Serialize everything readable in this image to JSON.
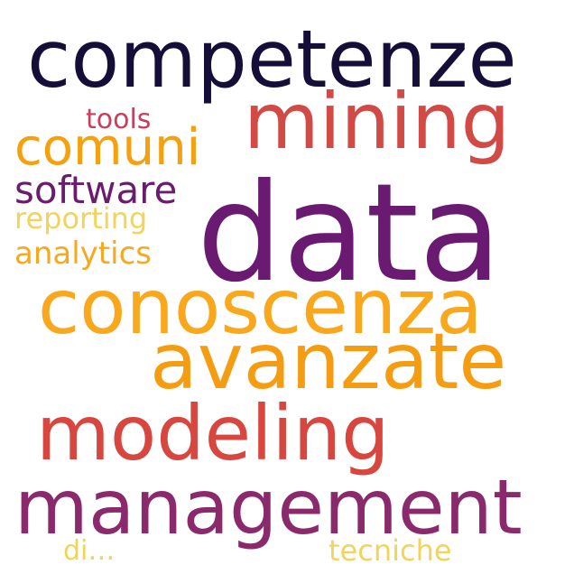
{
  "words": [
    {
      "id": "competenze",
      "text": "competenze",
      "color": "#150e38"
    },
    {
      "id": "mining",
      "text": "mining",
      "color": "#d14a45"
    },
    {
      "id": "comuni",
      "text": "comuni",
      "color": "#f5a00e"
    },
    {
      "id": "tools",
      "text": "tools",
      "color": "#c93e5a"
    },
    {
      "id": "software",
      "text": "software",
      "color": "#6a1d6c"
    },
    {
      "id": "reporting",
      "text": "reporting",
      "color": "#f2d45a"
    },
    {
      "id": "analytics",
      "text": "analytics",
      "color": "#f7a81f"
    },
    {
      "id": "data",
      "text": "data",
      "color": "#6a1a70"
    },
    {
      "id": "conoscenza",
      "text": "conoscenza",
      "color": "#f9a71c"
    },
    {
      "id": "avanzate",
      "text": "avanzate",
      "color": "#f59d12"
    },
    {
      "id": "modeling",
      "text": "modeling",
      "color": "#d8473f"
    },
    {
      "id": "management",
      "text": "management",
      "color": "#8a2a6c"
    },
    {
      "id": "di",
      "text": "di…",
      "color": "#f1d456"
    },
    {
      "id": "tecniche",
      "text": "tecniche",
      "color": "#f2d45a"
    }
  ]
}
